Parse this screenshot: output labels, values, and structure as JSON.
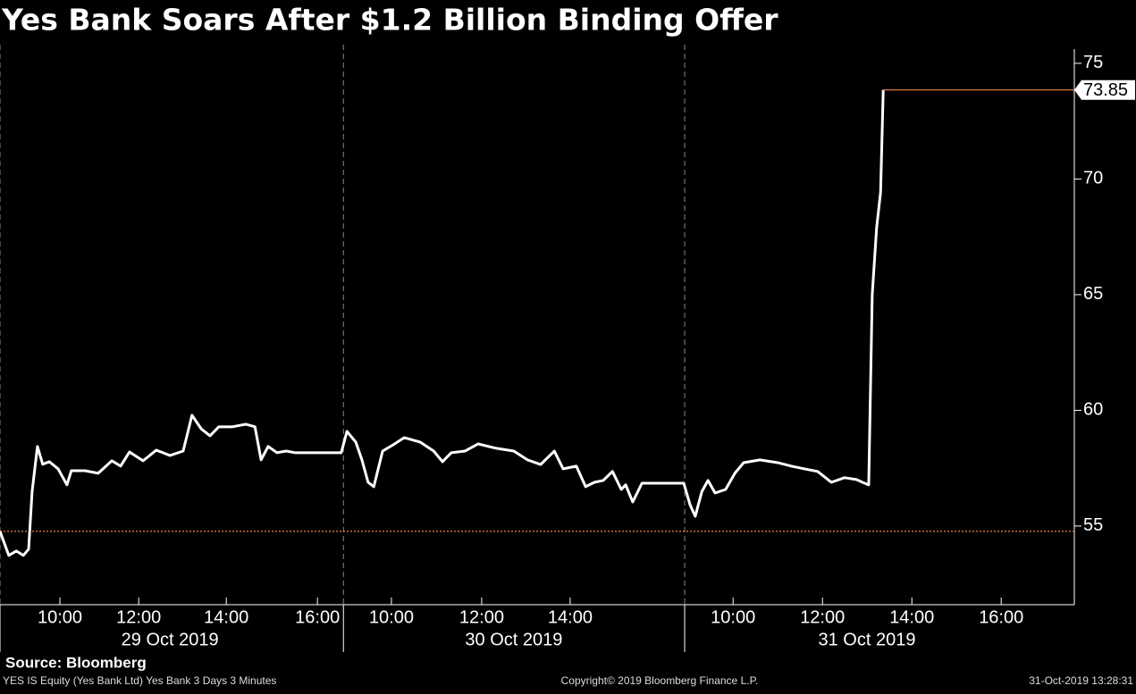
{
  "chart_data": {
    "type": "line",
    "title": "Yes Bank Soars After $1.2 Billion Binding Offer",
    "source": "Source: Bloomberg",
    "footer_left": "YES IS Equity (Yes Bank Ltd) Yes Bank 3 Days 3 Minutes",
    "footer_center": "Copyright© 2019 Bloomberg Finance L.P.",
    "footer_right": "31-Oct-2019 13:28:31",
    "xlim": [
      8.6,
      33
    ],
    "ylim": [
      51.6,
      76
    ],
    "yticks": [
      55,
      60,
      65,
      70,
      75
    ],
    "xticks": [
      {
        "value": 9.96,
        "label": "10:00"
      },
      {
        "value": 11.75,
        "label": "12:00"
      },
      {
        "value": 13.74,
        "label": "14:00"
      },
      {
        "value": 15.81,
        "label": "16:00"
      },
      {
        "value": 17.49,
        "label": "10:00"
      },
      {
        "value": 19.54,
        "label": "12:00"
      },
      {
        "value": 21.55,
        "label": "14:00"
      },
      {
        "value": 25.25,
        "label": "10:00"
      },
      {
        "value": 27.28,
        "label": "12:00"
      },
      {
        "value": 29.31,
        "label": "14:00"
      },
      {
        "value": 31.34,
        "label": "16:00"
      }
    ],
    "date_ticks": [
      {
        "value": 12.46,
        "label": "29 Oct 2019"
      },
      {
        "value": 20.27,
        "label": "30 Oct 2019"
      },
      {
        "value": 28.29,
        "label": "31 Oct 2019"
      }
    ],
    "day_dividers": [
      8.6,
      16.4,
      24.15
    ],
    "last_price": 73.85,
    "reference_line": 54.77,
    "series": [
      {
        "name": "YES IS Equity",
        "color": "#ffffff",
        "x": [
          8.6,
          8.8,
          8.97,
          9.13,
          9.25,
          9.33,
          9.45,
          9.57,
          9.72,
          9.92,
          10.12,
          10.22,
          10.53,
          10.83,
          11.14,
          11.34,
          11.54,
          11.85,
          12.15,
          12.46,
          12.76,
          12.86,
          12.96,
          13.17,
          13.37,
          13.57,
          13.88,
          14.18,
          14.39,
          14.53,
          14.69,
          14.89,
          15.1,
          15.3,
          16.35,
          16.48,
          16.68,
          16.82,
          16.96,
          17.09,
          17.29,
          17.53,
          17.78,
          18.14,
          18.45,
          18.65,
          18.85,
          19.16,
          19.46,
          19.87,
          20.27,
          20.58,
          20.88,
          21.19,
          21.39,
          21.69,
          21.9,
          22.1,
          22.3,
          22.51,
          22.71,
          22.81,
          22.97,
          23.18,
          24.13,
          24.27,
          24.39,
          24.54,
          24.68,
          24.84,
          25.08,
          25.29,
          25.49,
          25.86,
          26.26,
          26.57,
          26.87,
          27.17,
          27.48,
          27.78,
          28.05,
          28.19,
          28.33,
          28.41,
          28.51,
          28.6,
          28.66
        ],
        "values": [
          54.77,
          53.73,
          53.92,
          53.73,
          54.0,
          56.5,
          58.44,
          57.67,
          57.78,
          57.47,
          56.78,
          57.39,
          57.39,
          57.28,
          57.82,
          57.59,
          58.2,
          57.82,
          58.28,
          58.05,
          58.24,
          59.01,
          59.79,
          59.2,
          58.9,
          59.29,
          59.29,
          59.4,
          59.29,
          57.86,
          58.44,
          58.17,
          58.24,
          58.17,
          58.17,
          59.09,
          58.63,
          57.86,
          56.89,
          56.7,
          58.24,
          58.51,
          58.82,
          58.63,
          58.24,
          57.78,
          58.17,
          58.24,
          58.55,
          58.36,
          58.24,
          57.86,
          57.66,
          58.24,
          57.47,
          57.59,
          56.7,
          56.89,
          56.97,
          57.36,
          56.58,
          56.78,
          56.04,
          56.85,
          56.85,
          55.93,
          55.42,
          56.49,
          56.97,
          56.43,
          56.58,
          57.28,
          57.74,
          57.86,
          57.74,
          57.59,
          57.47,
          57.36,
          56.89,
          57.09,
          57.01,
          56.89,
          56.78,
          65.0,
          67.9,
          69.44,
          73.85
        ]
      }
    ]
  }
}
